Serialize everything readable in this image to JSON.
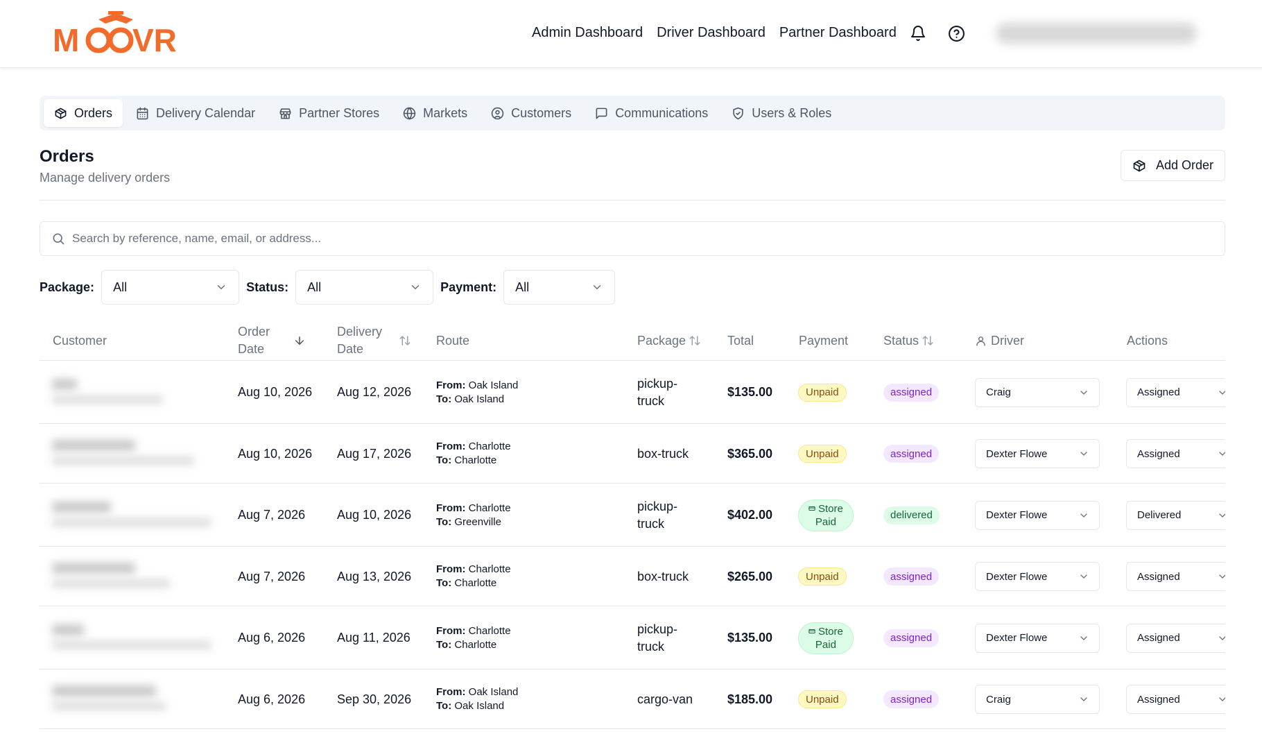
{
  "brand": {
    "logo_text": "MOOVR",
    "accent": "#f26b2a"
  },
  "top_nav": {
    "links": [
      "Admin Dashboard",
      "Driver Dashboard",
      "Partner Dashboard"
    ],
    "icons": [
      "bell-icon",
      "help-circle-icon"
    ]
  },
  "tabs": [
    {
      "label": "Orders",
      "icon": "package-icon",
      "active": true
    },
    {
      "label": "Delivery Calendar",
      "icon": "calendar-icon",
      "active": false
    },
    {
      "label": "Partner Stores",
      "icon": "store-icon",
      "active": false
    },
    {
      "label": "Markets",
      "icon": "globe-icon",
      "active": false
    },
    {
      "label": "Customers",
      "icon": "user-circle-icon",
      "active": false
    },
    {
      "label": "Communications",
      "icon": "message-square-icon",
      "active": false
    },
    {
      "label": "Users & Roles",
      "icon": "shield-icon",
      "active": false
    }
  ],
  "page": {
    "title": "Orders",
    "subtitle": "Manage delivery orders",
    "add_button": "Add Order"
  },
  "search": {
    "placeholder": "Search by reference, name, email, or address..."
  },
  "filters": {
    "package": {
      "label": "Package:",
      "value": "All"
    },
    "status": {
      "label": "Status:",
      "value": "All"
    },
    "payment": {
      "label": "Payment:",
      "value": "All"
    }
  },
  "table": {
    "headers": {
      "customer": "Customer",
      "order_date_1": "Order",
      "order_date_2": "Date",
      "delivery_date_1": "Delivery",
      "delivery_date_2": "Date",
      "route": "Route",
      "package": "Package",
      "total": "Total",
      "payment": "Payment",
      "status": "Status",
      "driver": "Driver",
      "actions": "Actions"
    },
    "route_from_label": "From:",
    "route_to_label": "To:",
    "rows": [
      {
        "order_date": "Aug 10, 2026",
        "delivery_date": "Aug 12, 2026",
        "from": "Oak Island",
        "to": "Oak Island",
        "package_1": "pickup-",
        "package_2": "truck",
        "total": "$135.00",
        "payment_1": "Unpaid",
        "payment_2": "",
        "payment_type": "unpaid",
        "status": "assigned",
        "driver": "Craig",
        "action": "Assigned"
      },
      {
        "order_date": "Aug 10, 2026",
        "delivery_date": "Aug 17, 2026",
        "from": "Charlotte",
        "to": "Charlotte",
        "package_1": "box-truck",
        "package_2": "",
        "total": "$365.00",
        "payment_1": "Unpaid",
        "payment_2": "",
        "payment_type": "unpaid",
        "status": "assigned",
        "driver": "Dexter Flowe",
        "action": "Assigned"
      },
      {
        "order_date": "Aug 7, 2026",
        "delivery_date": "Aug 10, 2026",
        "from": "Charlotte",
        "to": "Greenville",
        "package_1": "pickup-",
        "package_2": "truck",
        "total": "$402.00",
        "payment_1": "Store",
        "payment_2": "Paid",
        "payment_type": "storepaid",
        "status": "delivered",
        "driver": "Dexter Flowe",
        "action": "Delivered"
      },
      {
        "order_date": "Aug 7, 2026",
        "delivery_date": "Aug 13, 2026",
        "from": "Charlotte",
        "to": "Charlotte",
        "package_1": "box-truck",
        "package_2": "",
        "total": "$265.00",
        "payment_1": "Unpaid",
        "payment_2": "",
        "payment_type": "unpaid",
        "status": "assigned",
        "driver": "Dexter Flowe",
        "action": "Assigned"
      },
      {
        "order_date": "Aug 6, 2026",
        "delivery_date": "Aug 11, 2026",
        "from": "Charlotte",
        "to": "Charlotte",
        "package_1": "pickup-",
        "package_2": "truck",
        "total": "$135.00",
        "payment_1": "Store",
        "payment_2": "Paid",
        "payment_type": "storepaid",
        "status": "assigned",
        "driver": "Dexter Flowe",
        "action": "Assigned"
      },
      {
        "order_date": "Aug 6, 2026",
        "delivery_date": "Sep 30, 2026",
        "from": "Oak Island",
        "to": "Oak Island",
        "package_1": "cargo-van",
        "package_2": "",
        "total": "$185.00",
        "payment_1": "Unpaid",
        "payment_2": "",
        "payment_type": "unpaid",
        "status": "assigned",
        "driver": "Craig",
        "action": "Assigned"
      }
    ]
  }
}
